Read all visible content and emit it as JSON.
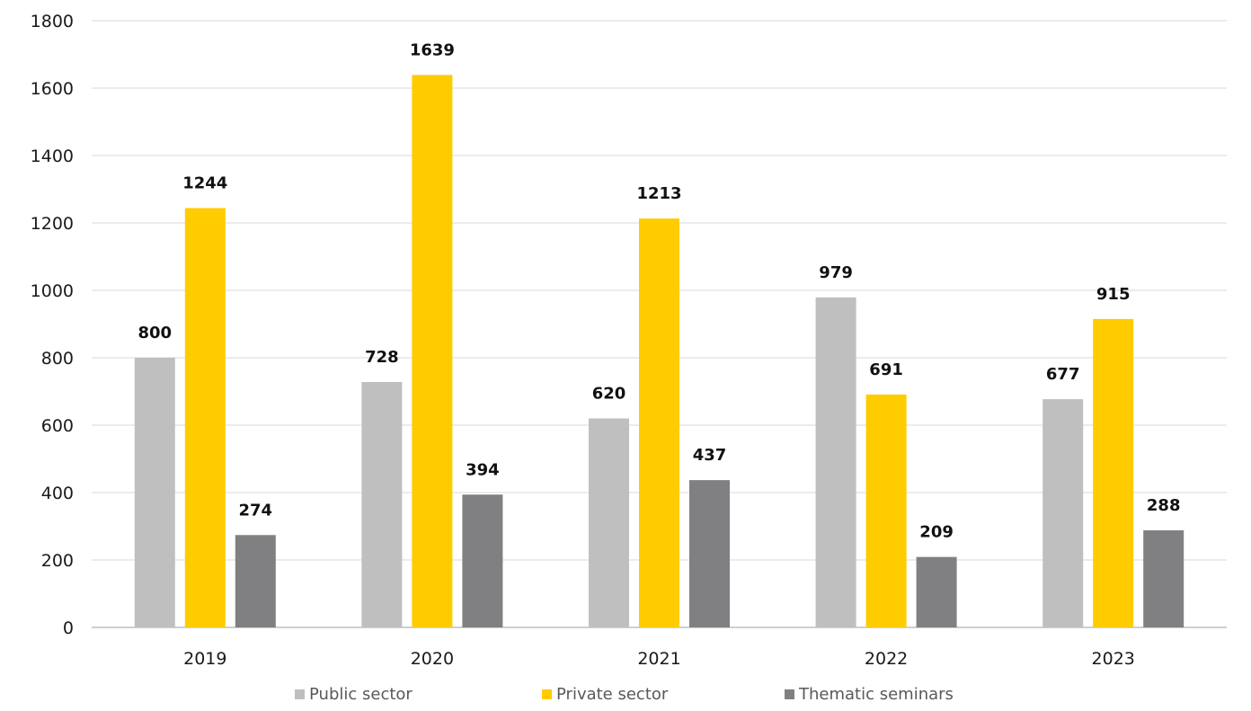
{
  "chart_data": {
    "type": "bar",
    "title": "",
    "xlabel": "",
    "ylabel": "",
    "categories": [
      "2019",
      "2020",
      "2021",
      "2022",
      "2023"
    ],
    "series": [
      {
        "name": "Public sector",
        "color": "#bfbfbf",
        "values": [
          800,
          728,
          620,
          979,
          677
        ]
      },
      {
        "name": "Private sector",
        "color": "#ffcc00",
        "values": [
          1244,
          1639,
          1213,
          691,
          915
        ]
      },
      {
        "name": "Thematic seminars",
        "color": "#808083",
        "values": [
          274,
          394,
          437,
          209,
          288
        ]
      }
    ],
    "ylim": [
      0,
      1800
    ],
    "yticks": [
      "0",
      "200",
      "400",
      "600",
      "800",
      "1000",
      "1200",
      "1400",
      "1600",
      "1800"
    ],
    "grid": true,
    "legend_position": "bottom",
    "data_labels": true
  }
}
